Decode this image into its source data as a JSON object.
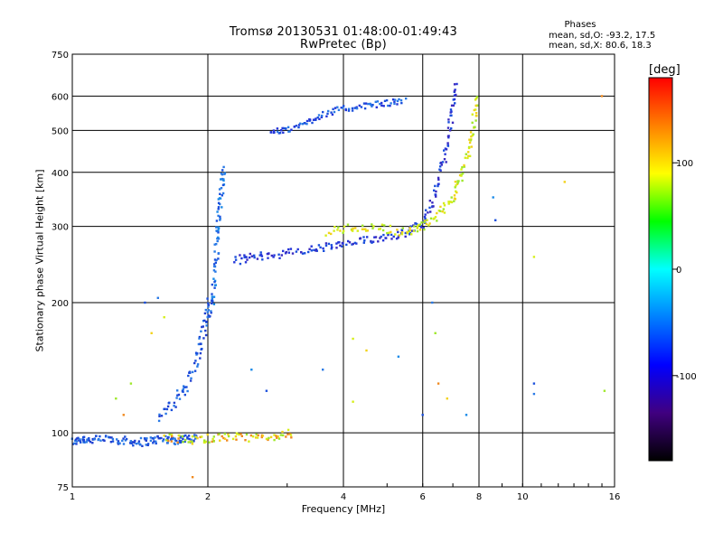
{
  "header": {
    "title_line1": "Tromsø 20130531 01:48:00-01:49:43",
    "title_line2": "RwPretec (Bp)"
  },
  "phase_stats": {
    "title": "Phases",
    "line1": "mean, sd,O: -93.2, 17.5",
    "line2": "mean, sd,X:  80.6, 18.3"
  },
  "colorbar": {
    "unit": "[deg]",
    "tick_labels": [
      "100",
      "0",
      "-100"
    ],
    "tick_values": [
      100,
      0,
      -100
    ],
    "range": [
      -180,
      180
    ],
    "colors": [
      "#ff0000",
      "#ff8000",
      "#ffff00",
      "#00ff00",
      "#00ffff",
      "#0080ff",
      "#0000ff",
      "#400080",
      "#000000"
    ]
  },
  "chart_data": {
    "type": "scatter",
    "xlabel": "Frequency [MHz]",
    "ylabel": "Stationary phase Virtual Height [km]",
    "x_scale": "log",
    "y_scale": "log",
    "xlim": [
      1,
      16
    ],
    "ylim": [
      75,
      750
    ],
    "x_ticks": [
      1,
      2,
      4,
      6,
      8,
      10,
      16
    ],
    "y_ticks": [
      75,
      100,
      200,
      300,
      400,
      500,
      600,
      750
    ],
    "grid": true,
    "colors": {
      "o_mode": "#1a4fdc",
      "o_mode_light": "#2a7ae6",
      "x_mode": "#d6ee1a",
      "x_mode_alt": "#9ee82a",
      "top_trace": "#2535d8",
      "oblique": "#3a2ac0"
    },
    "traces": [
      {
        "name": "o_low",
        "colors": [
          "#1a4fdc",
          "#1f3fd0",
          "#2a7ae6"
        ],
        "points": [
          [
            1.0,
            95
          ],
          [
            1.05,
            97
          ],
          [
            1.1,
            96
          ],
          [
            1.2,
            97
          ],
          [
            1.3,
            96
          ],
          [
            1.4,
            95
          ],
          [
            1.5,
            96
          ],
          [
            1.6,
            97
          ],
          [
            1.7,
            96
          ],
          [
            1.8,
            97
          ],
          [
            1.9,
            98
          ]
        ],
        "spread": 0.02
      },
      {
        "name": "o_rise",
        "colors": [
          "#1a4fdc",
          "#2a7ae6",
          "#1f3fd0"
        ],
        "points": [
          [
            1.55,
            108
          ],
          [
            1.7,
            118
          ],
          [
            1.8,
            130
          ],
          [
            1.9,
            150
          ],
          [
            1.95,
            170
          ],
          [
            2.0,
            190
          ],
          [
            2.03,
            205
          ]
        ],
        "spread": 0.025
      },
      {
        "name": "o_cusp",
        "colors": [
          "#2a7ae6",
          "#1a4fdc",
          "#1a8ae8"
        ],
        "points": [
          [
            2.05,
            200
          ],
          [
            2.08,
            240
          ],
          [
            2.1,
            280
          ],
          [
            2.12,
            320
          ],
          [
            2.15,
            370
          ],
          [
            2.18,
            410
          ]
        ],
        "spread": 0.02
      },
      {
        "name": "o_f2",
        "colors": [
          "#1a4fdc",
          "#2535d8",
          "#3a2ac0"
        ],
        "points": [
          [
            2.3,
            250
          ],
          [
            2.5,
            255
          ],
          [
            2.8,
            258
          ],
          [
            3.2,
            262
          ],
          [
            3.6,
            268
          ],
          [
            4.0,
            272
          ],
          [
            4.5,
            278
          ],
          [
            5.0,
            285
          ],
          [
            5.5,
            290
          ],
          [
            6.0,
            305
          ],
          [
            6.3,
            340
          ],
          [
            6.6,
            400
          ],
          [
            6.8,
            470
          ],
          [
            7.0,
            560
          ],
          [
            7.1,
            640
          ]
        ],
        "spread": 0.02
      },
      {
        "name": "x_f2",
        "colors": [
          "#d6ee1a",
          "#9ee82a",
          "#f2d21a"
        ],
        "points": [
          [
            3.7,
            292
          ],
          [
            4.2,
            298
          ],
          [
            4.8,
            298
          ],
          [
            5.5,
            290
          ],
          [
            6.0,
            300
          ],
          [
            6.5,
            320
          ],
          [
            7.0,
            350
          ],
          [
            7.3,
            390
          ],
          [
            7.6,
            450
          ],
          [
            7.8,
            520
          ],
          [
            7.9,
            610
          ]
        ],
        "spread": 0.02
      },
      {
        "name": "top_trace",
        "colors": [
          "#2535d8",
          "#1a4fdc",
          "#2a7ae6"
        ],
        "points": [
          [
            2.75,
            495
          ],
          [
            3.0,
            500
          ],
          [
            3.3,
            520
          ],
          [
            3.6,
            545
          ],
          [
            4.0,
            560
          ],
          [
            4.5,
            570
          ],
          [
            5.0,
            578
          ],
          [
            5.5,
            585
          ]
        ],
        "spread": 0.015
      },
      {
        "name": "x_low",
        "colors": [
          "#d6ee1a",
          "#f2d21a",
          "#9ee82a",
          "#f08a20"
        ],
        "points": [
          [
            1.6,
            98
          ],
          [
            1.8,
            96
          ],
          [
            2.0,
            97
          ],
          [
            2.2,
            98
          ],
          [
            2.5,
            97
          ],
          [
            2.8,
            98
          ],
          [
            3.1,
            100
          ]
        ],
        "spread": 0.02
      }
    ],
    "sparse_points": [
      [
        1.45,
        200
      ],
      [
        1.55,
        205
      ],
      [
        1.6,
        185
      ],
      [
        1.5,
        170
      ],
      [
        1.35,
        130
      ],
      [
        1.3,
        110
      ],
      [
        2.5,
        140
      ],
      [
        2.7,
        125
      ],
      [
        3.6,
        140
      ],
      [
        4.2,
        165
      ],
      [
        4.5,
        155
      ],
      [
        6.4,
        170
      ],
      [
        6.5,
        130
      ],
      [
        7.5,
        110
      ],
      [
        10.6,
        130
      ],
      [
        10.6,
        123
      ],
      [
        10.6,
        255
      ],
      [
        12.4,
        380
      ],
      [
        15.2,
        125
      ],
      [
        15.0,
        600
      ],
      [
        8.6,
        350
      ],
      [
        8.7,
        310
      ],
      [
        6.3,
        200
      ],
      [
        4.2,
        118
      ],
      [
        6.8,
        120
      ],
      [
        1.25,
        120
      ],
      [
        1.85,
        79
      ],
      [
        5.3,
        150
      ],
      [
        6.0,
        110
      ]
    ]
  }
}
